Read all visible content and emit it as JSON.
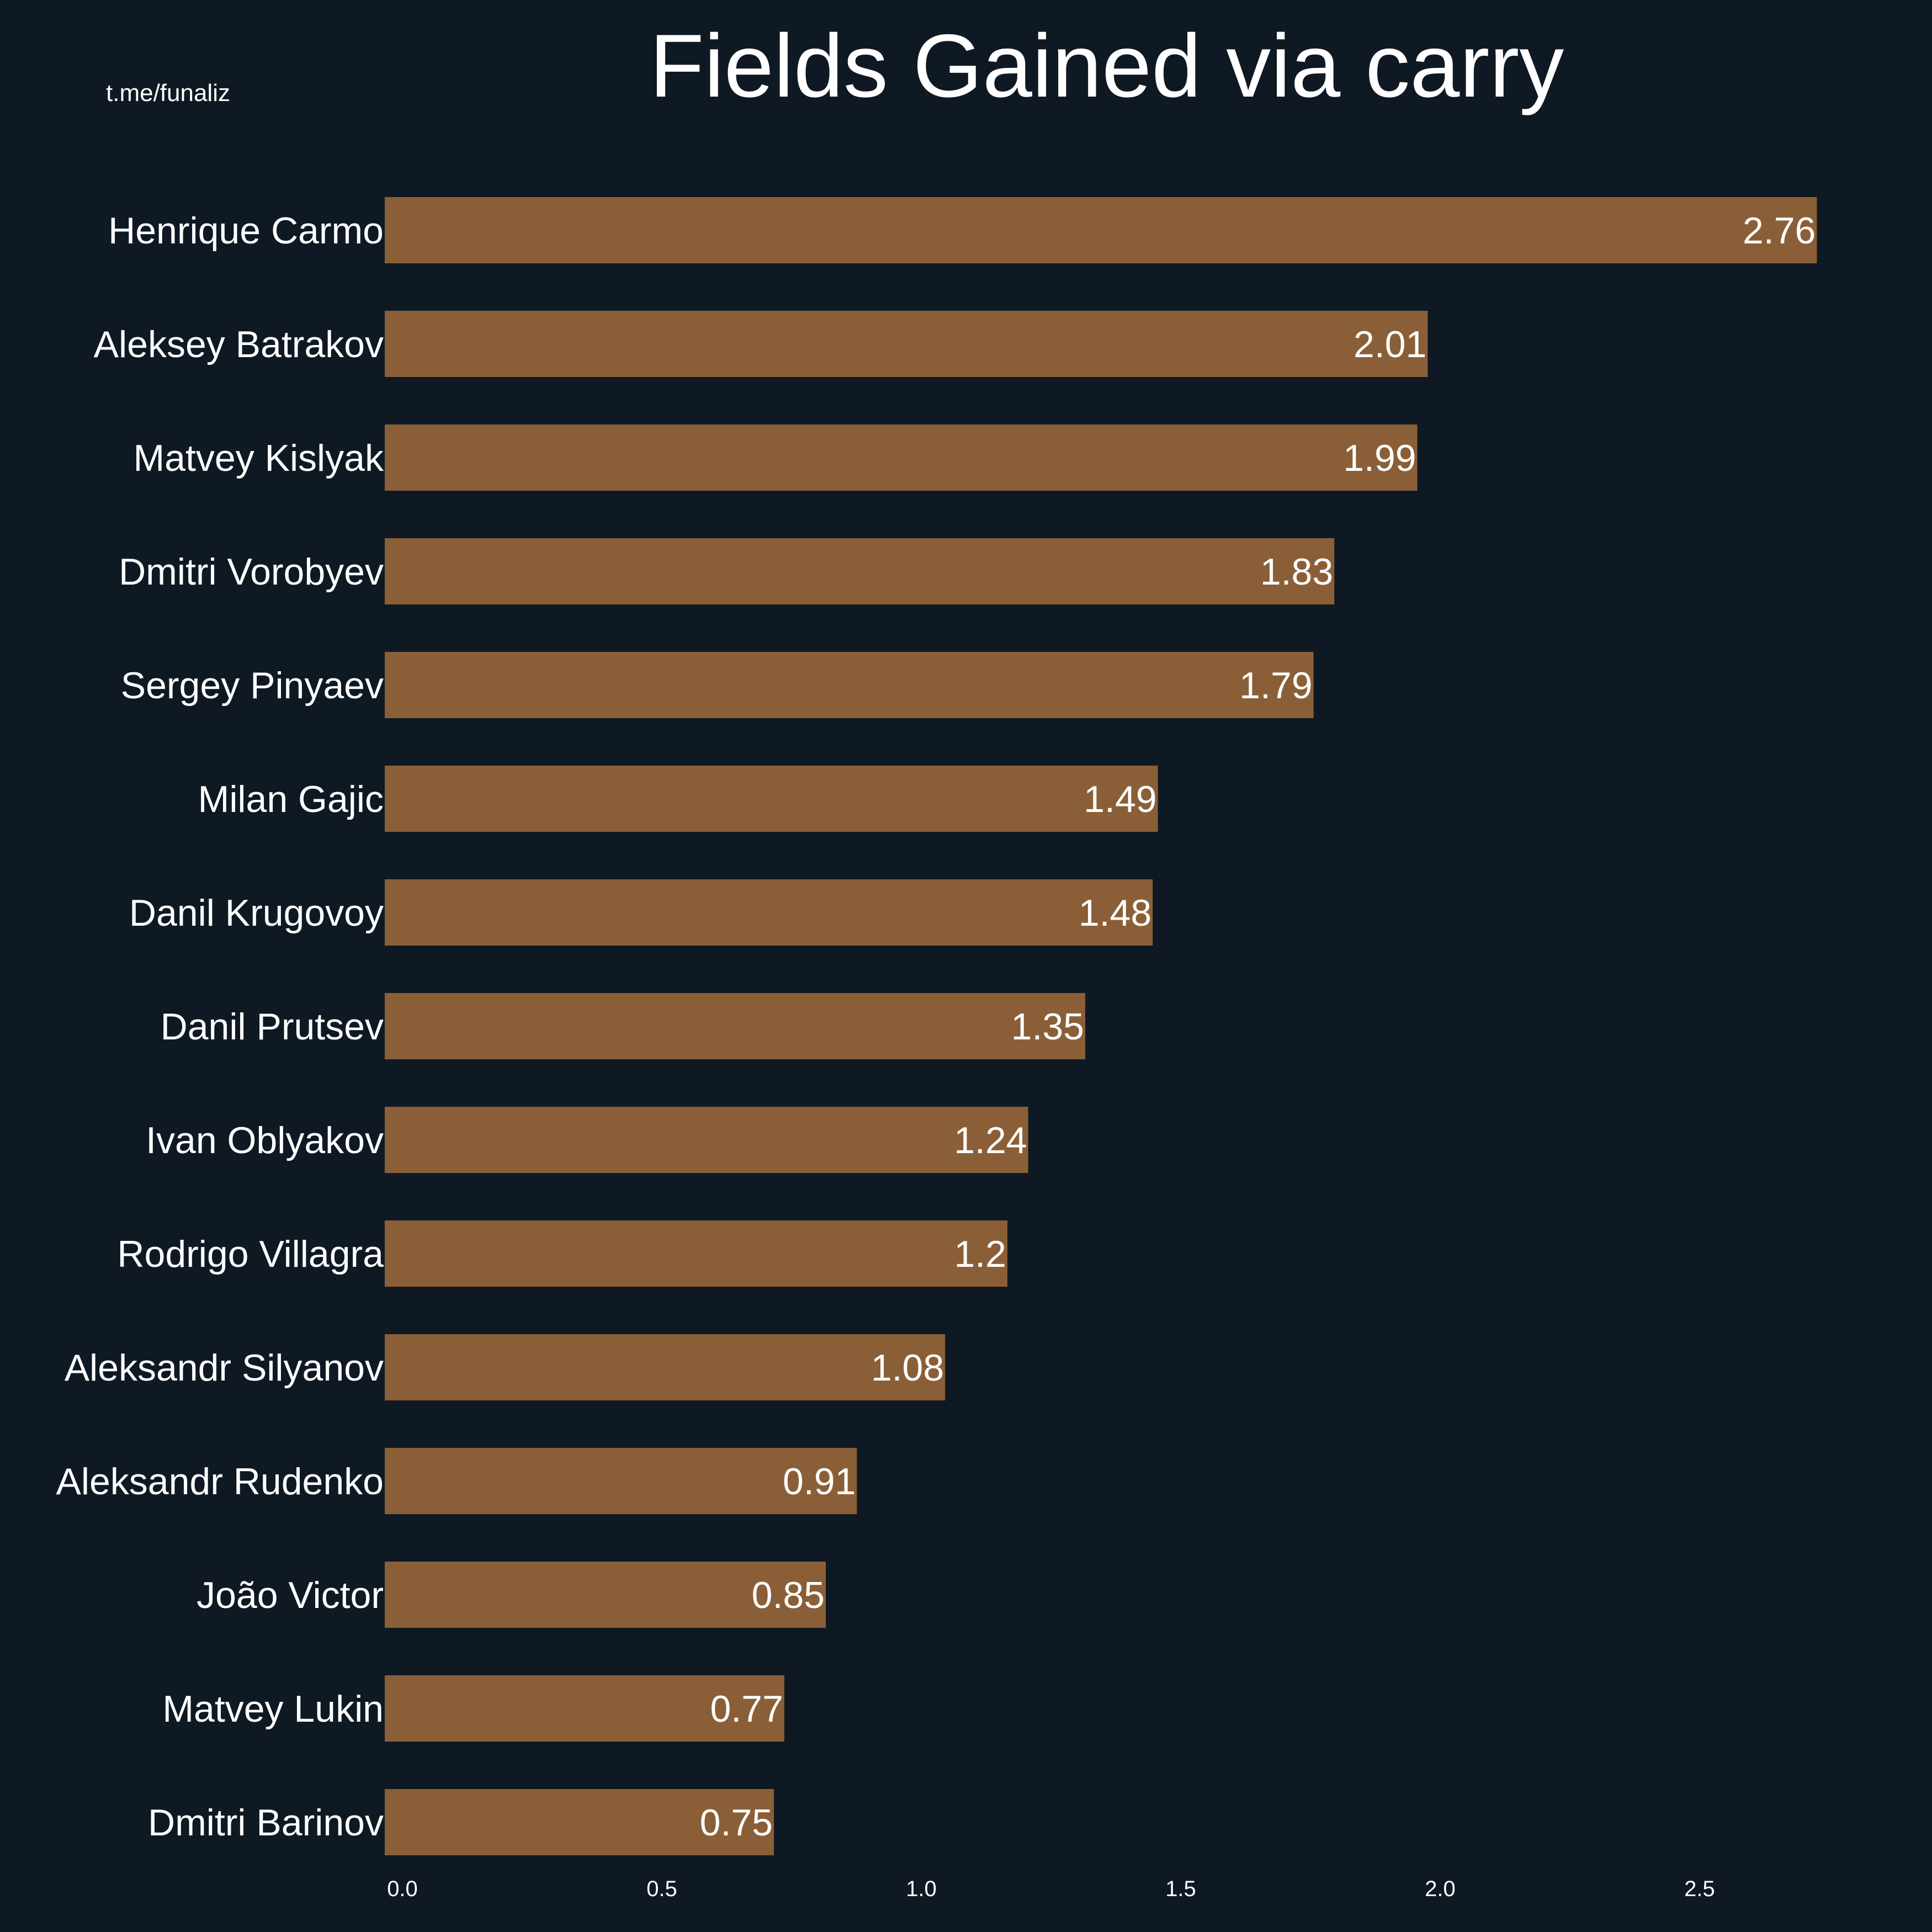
{
  "watermark": "t.me/funaliz",
  "colors": {
    "background": "#0f1923",
    "bar": "#8a5f37",
    "text": "#ffffff"
  },
  "chart_data": {
    "type": "bar",
    "orientation": "horizontal",
    "title": "Fields Gained via carry",
    "xlabel": "",
    "ylabel": "",
    "categories": [
      "Henrique Carmo",
      "Aleksey Batrakov",
      "Matvey Kislyak",
      "Dmitri Vorobyev",
      "Sergey Pinyaev",
      "Milan Gajic",
      "Danil Krugovoy",
      "Danil Prutsev",
      "Ivan Oblyakov",
      "Rodrigo Villagra",
      "Aleksandr Silyanov",
      "Aleksandr Rudenko",
      "João Victor",
      "Matvey Lukin",
      "Dmitri Barinov"
    ],
    "values": [
      2.76,
      2.01,
      1.99,
      1.83,
      1.79,
      1.49,
      1.48,
      1.35,
      1.24,
      1.2,
      1.08,
      0.91,
      0.85,
      0.77,
      0.75
    ],
    "value_labels": [
      "2.76",
      "2.01",
      "1.99",
      "1.83",
      "1.79",
      "1.49",
      "1.48",
      "1.35",
      "1.24",
      "1.2",
      "1.08",
      "0.91",
      "0.85",
      "0.77",
      "0.75"
    ],
    "xticks": [
      "0.0",
      "0.5",
      "1.0",
      "1.5",
      "2.0",
      "2.5"
    ],
    "xtick_values": [
      0,
      0.5,
      1.0,
      1.5,
      2.0,
      2.5
    ],
    "xlim": [
      0,
      2.9
    ],
    "grid": false,
    "legend": "none"
  }
}
